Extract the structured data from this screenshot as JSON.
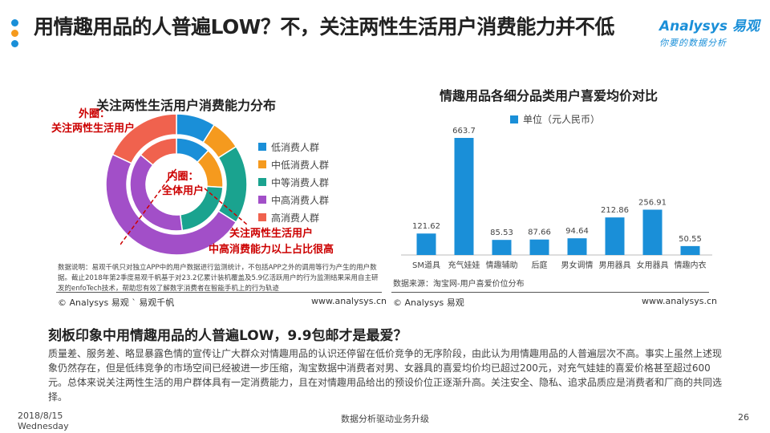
{
  "title": "用情趣用品的人普遍LOW？不，关注两性生活用户消费能力并不低",
  "logo": {
    "brand": "Analysys 易观",
    "slogan": "你要的数据分析"
  },
  "colors": {
    "blue": "#1a8fd8",
    "orange": "#f59a1e",
    "teal": "#1aa38f",
    "purple": "#a24fc8",
    "red": "#f0624e"
  },
  "left_panel": {
    "title": "关注两性生活用户消费能力分布",
    "outer_label": [
      "外圈：",
      "关注两性生活用户"
    ],
    "inner_label": [
      "内圈：",
      "全体用户"
    ],
    "callout": [
      "关注两性生活用户",
      "中高消费能力以上占比很高"
    ],
    "note": "数据说明：易观千帆只对独立APP中的用户数据进行监测统计，不包括APP之外的调用等行为产生的用户数据。截止2018年第2季度易观千帆基于对23.2亿累计装机覆盖及5.9亿活跃用户的行为监测结果采用自主研发的enfoTech技术，帮助您有效了解数字消费者在智能手机上的行为轨迹",
    "source": "© Analysys 易观 ` 易观千帆",
    "site": "www.analysys.cn"
  },
  "right_panel": {
    "title": "情趣用品各细分品类用户喜爱均价对比",
    "source_label": "数据来源：淘宝网-用户喜爱价位分布",
    "source": "© Analysys 易观",
    "site": "www.analysys.cn"
  },
  "chart_data": [
    {
      "type": "pie",
      "variant": "double-donut",
      "title": "关注两性生活用户消费能力分布",
      "categories": [
        "低消费人群",
        "中低消费人群",
        "中等消费人群",
        "中高消费人群",
        "高消费人群"
      ],
      "series": [
        {
          "name": "外圈：关注两性生活用户",
          "values": [
            9,
            7,
            18,
            48,
            18
          ]
        },
        {
          "name": "内圈：全体用户",
          "values": [
            12,
            14,
            22,
            38,
            14
          ]
        }
      ],
      "legend_position": "right"
    },
    {
      "type": "bar",
      "title": "情趣用品各细分品类用户喜爱均价对比",
      "categories": [
        "SM道具",
        "充气娃娃",
        "情趣辅助",
        "后庭",
        "男女调情",
        "男用器具",
        "女用器具",
        "情趣内衣"
      ],
      "series": [
        {
          "name": "单位（元人民币）",
          "values": [
            121.62,
            663.7,
            85.53,
            87.66,
            94.64,
            212.86,
            256.91,
            50.55
          ]
        }
      ],
      "ylim": [
        0,
        700
      ],
      "grid": false,
      "legend_position": "top"
    }
  ],
  "summary": {
    "heading": "刻板印象中用情趣用品的人普遍LOW，9.9包邮才是最爱？",
    "body": "质量差、服务差、略显暴露色情的宣传让广大群众对情趣用品的认识还停留在低价竞争的无序阶段，由此认为用情趣用品的人普遍层次不高。事实上虽然上述现象仍然存在，但是低纬竞争的市场空间已经被进一步压缩，淘宝数据中消费者对男、女器具的喜爱均价均已超过200元，对充气娃娃的喜爱价格甚至超过600元。总体来说关注两性生活的用户群体具有一定消费能力，且在对情趣用品给出的预设价位正逐渐升高。关注安全、隐私、追求品质应是消费者和厂商的共同选择。"
  },
  "footer": {
    "date": "2018/8/15",
    "weekday": "Wednesday",
    "center": "数据分析驱动业务升级",
    "page": "26"
  }
}
